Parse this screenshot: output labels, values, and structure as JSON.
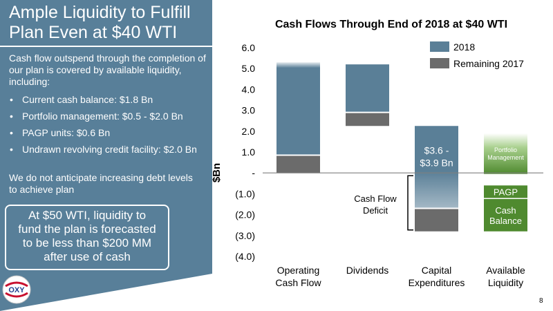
{
  "slide": {
    "title": "Ample Liquidity to Fulfill\nPlan Even at $40 WTI",
    "intro": "Cash flow outspend through the completion of our plan is covered by available liquidity, including:",
    "bullets": [
      "Current cash balance: $1.8 Bn",
      "Portfolio management: $0.5 - $2.0 Bn",
      "PAGP units: $0.6 Bn",
      "Undrawn revolving credit facility: $2.0 Bn"
    ],
    "footnote": "We do not anticipate increasing debt levels to achieve plan",
    "callout": "At $50 WTI, liquidity to\nfund the plan is forecasted\nto be less than $200 MM\nafter use of cash",
    "logo_text": "OXY",
    "page_number": "8",
    "colors": {
      "panel": "#587f99",
      "steel": "#5a7f97",
      "grey": "#6b6b6b",
      "green": "#4f8a2f",
      "light_green": "#a9d08e"
    }
  },
  "chart_data": {
    "type": "bar",
    "stacked": true,
    "title": "Cash Flows Through End of 2018 at $40 WTI",
    "ylabel": "$Bn",
    "xlabel": "",
    "ylim": [
      -4.0,
      6.0
    ],
    "yticks": [
      6.0,
      5.0,
      4.0,
      3.0,
      2.0,
      1.0,
      0.0,
      -1.0,
      -2.0,
      -3.0,
      -4.0
    ],
    "ytick_labels": [
      "6.0",
      "5.0",
      "4.0",
      "3.0",
      "2.0",
      "1.0",
      "-",
      "(1.0)",
      "(2.0)",
      "(3.0)",
      "(4.0)"
    ],
    "categories": [
      "Operating\nCash Flow",
      "Dividends",
      "Capital\nExpenditures",
      "Available\nLiquidity"
    ],
    "grid": false,
    "legend_position": "top-right",
    "legend": [
      {
        "name": "2018",
        "color": "#5a7f97"
      },
      {
        "name": "Remaining 2017",
        "color": "#6b6b6b"
      }
    ],
    "bars": [
      {
        "category": "Operating\nCash Flow",
        "segments": [
          {
            "series": "Remaining 2017",
            "from": 0.0,
            "to": 0.85,
            "color": "#6b6b6b"
          },
          {
            "series": "2018",
            "from": 0.85,
            "to": 5.3,
            "color": "#5a7f97",
            "fade_top": true
          }
        ]
      },
      {
        "category": "Dividends",
        "segments": [
          {
            "series": "2018",
            "from": 2.9,
            "to": 5.2,
            "color": "#5a7f97"
          },
          {
            "series": "Remaining 2017",
            "from": 2.25,
            "to": 2.9,
            "color": "#6b6b6b"
          }
        ]
      },
      {
        "category": "Capital\nExpenditures",
        "segments": [
          {
            "series": "2018",
            "from": -1.7,
            "to": 2.25,
            "color": "#5a7f97",
            "fade_bottom": true
          },
          {
            "series": "Remaining 2017",
            "from": -2.8,
            "to": -1.7,
            "color": "#6b6b6b"
          }
        ]
      },
      {
        "category": "Available\nLiquidity",
        "segments": [
          {
            "label": "Portfolio\nManagement",
            "from": -0.05,
            "to": 1.9,
            "color": "#4f8a2f",
            "fade_top": true
          },
          {
            "label": "PAGP",
            "from": -1.2,
            "to": -0.6,
            "color": "#4f8a2f"
          },
          {
            "label": "Cash\nBalance",
            "from": -2.8,
            "to": -1.25,
            "color": "#4f8a2f"
          }
        ]
      }
    ],
    "annotations": [
      {
        "text": "$3.6 -\n$3.9 Bn",
        "category_index": 2,
        "y": 0.85
      },
      {
        "text": "Cash Flow\nDeficit",
        "bracket_from": 0.0,
        "bracket_to": -2.8
      }
    ]
  }
}
